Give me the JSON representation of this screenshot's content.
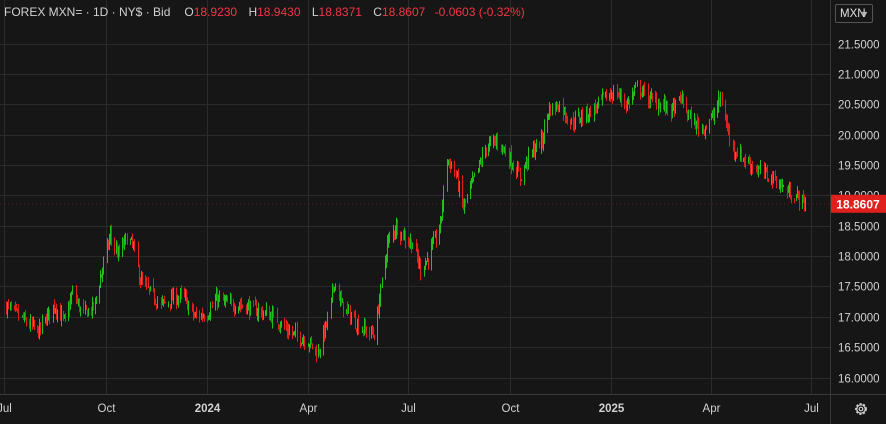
{
  "legend": {
    "symbol": "FOREX MXN= · 1D · NY$ · Bid",
    "o_label": "O",
    "o_value": "18.9230",
    "h_label": "H",
    "h_value": "18.9430",
    "l_label": "L",
    "l_value": "18.8371",
    "c_label": "C",
    "c_value": "18.8607",
    "change": "-0.0603 (-0.32%)"
  },
  "currency_selector": {
    "label": "MXN"
  },
  "last_price": "18.8607",
  "colors": {
    "background": "#161616",
    "grid": "#2b2b2b",
    "up": "#22c01b",
    "down": "#e0201c",
    "last_price_bg": "#e0201c",
    "text": "#d1d1d1"
  },
  "chart_data": {
    "type": "ohlc",
    "title": "",
    "xlabel": "",
    "ylabel": "",
    "ylim": [
      15.8,
      21.8
    ],
    "y_ticks": [
      "16.0000",
      "16.5000",
      "17.0000",
      "17.5000",
      "18.0000",
      "18.5000",
      "19.0000",
      "19.5000",
      "20.0000",
      "20.5000",
      "21.0000",
      "21.5000"
    ],
    "x_ticks": [
      "Jul",
      "Oct",
      "2024",
      "Apr",
      "Jul",
      "Oct",
      "2025",
      "Apr",
      "Jul"
    ],
    "grid": true,
    "x_range": [
      "2023-07-01",
      "2025-07-01"
    ],
    "price_path": [
      [
        "2023-07-01",
        17.2
      ],
      [
        "2023-07-15",
        17.0
      ],
      [
        "2023-08-01",
        16.75
      ],
      [
        "2023-08-15",
        17.2
      ],
      [
        "2023-08-25",
        16.9
      ],
      [
        "2023-09-01",
        17.4
      ],
      [
        "2023-09-10",
        17.05
      ],
      [
        "2023-09-20",
        17.15
      ],
      [
        "2023-09-28",
        17.8
      ],
      [
        "2023-10-05",
        18.35
      ],
      [
        "2023-10-12",
        18.0
      ],
      [
        "2023-10-20",
        18.3
      ],
      [
        "2023-10-26",
        18.15
      ],
      [
        "2023-11-01",
        17.6
      ],
      [
        "2023-11-10",
        17.4
      ],
      [
        "2023-11-20",
        17.2
      ],
      [
        "2023-12-01",
        17.3
      ],
      [
        "2023-12-10",
        17.35
      ],
      [
        "2023-12-20",
        17.0
      ],
      [
        "2024-01-01",
        17.05
      ],
      [
        "2024-01-10",
        17.3
      ],
      [
        "2024-01-20",
        17.2
      ],
      [
        "2024-02-01",
        17.2
      ],
      [
        "2024-02-15",
        17.1
      ],
      [
        "2024-03-01",
        17.0
      ],
      [
        "2024-03-15",
        16.75
      ],
      [
        "2024-04-01",
        16.6
      ],
      [
        "2024-04-10",
        16.4
      ],
      [
        "2024-04-20",
        17.0
      ],
      [
        "2024-04-25",
        17.6
      ],
      [
        "2024-05-01",
        17.2
      ],
      [
        "2024-05-10",
        17.0
      ],
      [
        "2024-05-20",
        16.8
      ],
      [
        "2024-06-01",
        16.7
      ],
      [
        "2024-06-05",
        17.3
      ],
      [
        "2024-06-12",
        18.2
      ],
      [
        "2024-06-20",
        18.5
      ],
      [
        "2024-06-28",
        18.3
      ],
      [
        "2024-07-05",
        18.2
      ],
      [
        "2024-07-12",
        17.8
      ],
      [
        "2024-07-20",
        18.0
      ],
      [
        "2024-07-30",
        18.5
      ],
      [
        "2024-08-05",
        19.6
      ],
      [
        "2024-08-12",
        19.4
      ],
      [
        "2024-08-20",
        18.8
      ],
      [
        "2024-08-30",
        19.3
      ],
      [
        "2024-09-10",
        19.8
      ],
      [
        "2024-09-20",
        19.9
      ],
      [
        "2024-10-01",
        19.6
      ],
      [
        "2024-10-10",
        19.3
      ],
      [
        "2024-10-20",
        19.7
      ],
      [
        "2024-10-30",
        19.9
      ],
      [
        "2024-11-05",
        20.4
      ],
      [
        "2024-11-15",
        20.5
      ],
      [
        "2024-11-25",
        20.2
      ],
      [
        "2024-12-05",
        20.3
      ],
      [
        "2024-12-15",
        20.4
      ],
      [
        "2024-12-25",
        20.6
      ],
      [
        "2025-01-05",
        20.7
      ],
      [
        "2025-01-15",
        20.5
      ],
      [
        "2025-01-25",
        20.8
      ],
      [
        "2025-02-03",
        20.6
      ],
      [
        "2025-02-15",
        20.5
      ],
      [
        "2025-02-25",
        20.4
      ],
      [
        "2025-03-05",
        20.6
      ],
      [
        "2025-03-15",
        20.2
      ],
      [
        "2025-03-25",
        20.1
      ],
      [
        "2025-04-03",
        20.3
      ],
      [
        "2025-04-10",
        20.6
      ],
      [
        "2025-04-20",
        19.8
      ],
      [
        "2025-05-01",
        19.6
      ],
      [
        "2025-05-15",
        19.4
      ],
      [
        "2025-05-30",
        19.25
      ],
      [
        "2025-06-10",
        19.05
      ],
      [
        "2025-06-20",
        18.95
      ],
      [
        "2025-06-26",
        18.86
      ]
    ]
  }
}
